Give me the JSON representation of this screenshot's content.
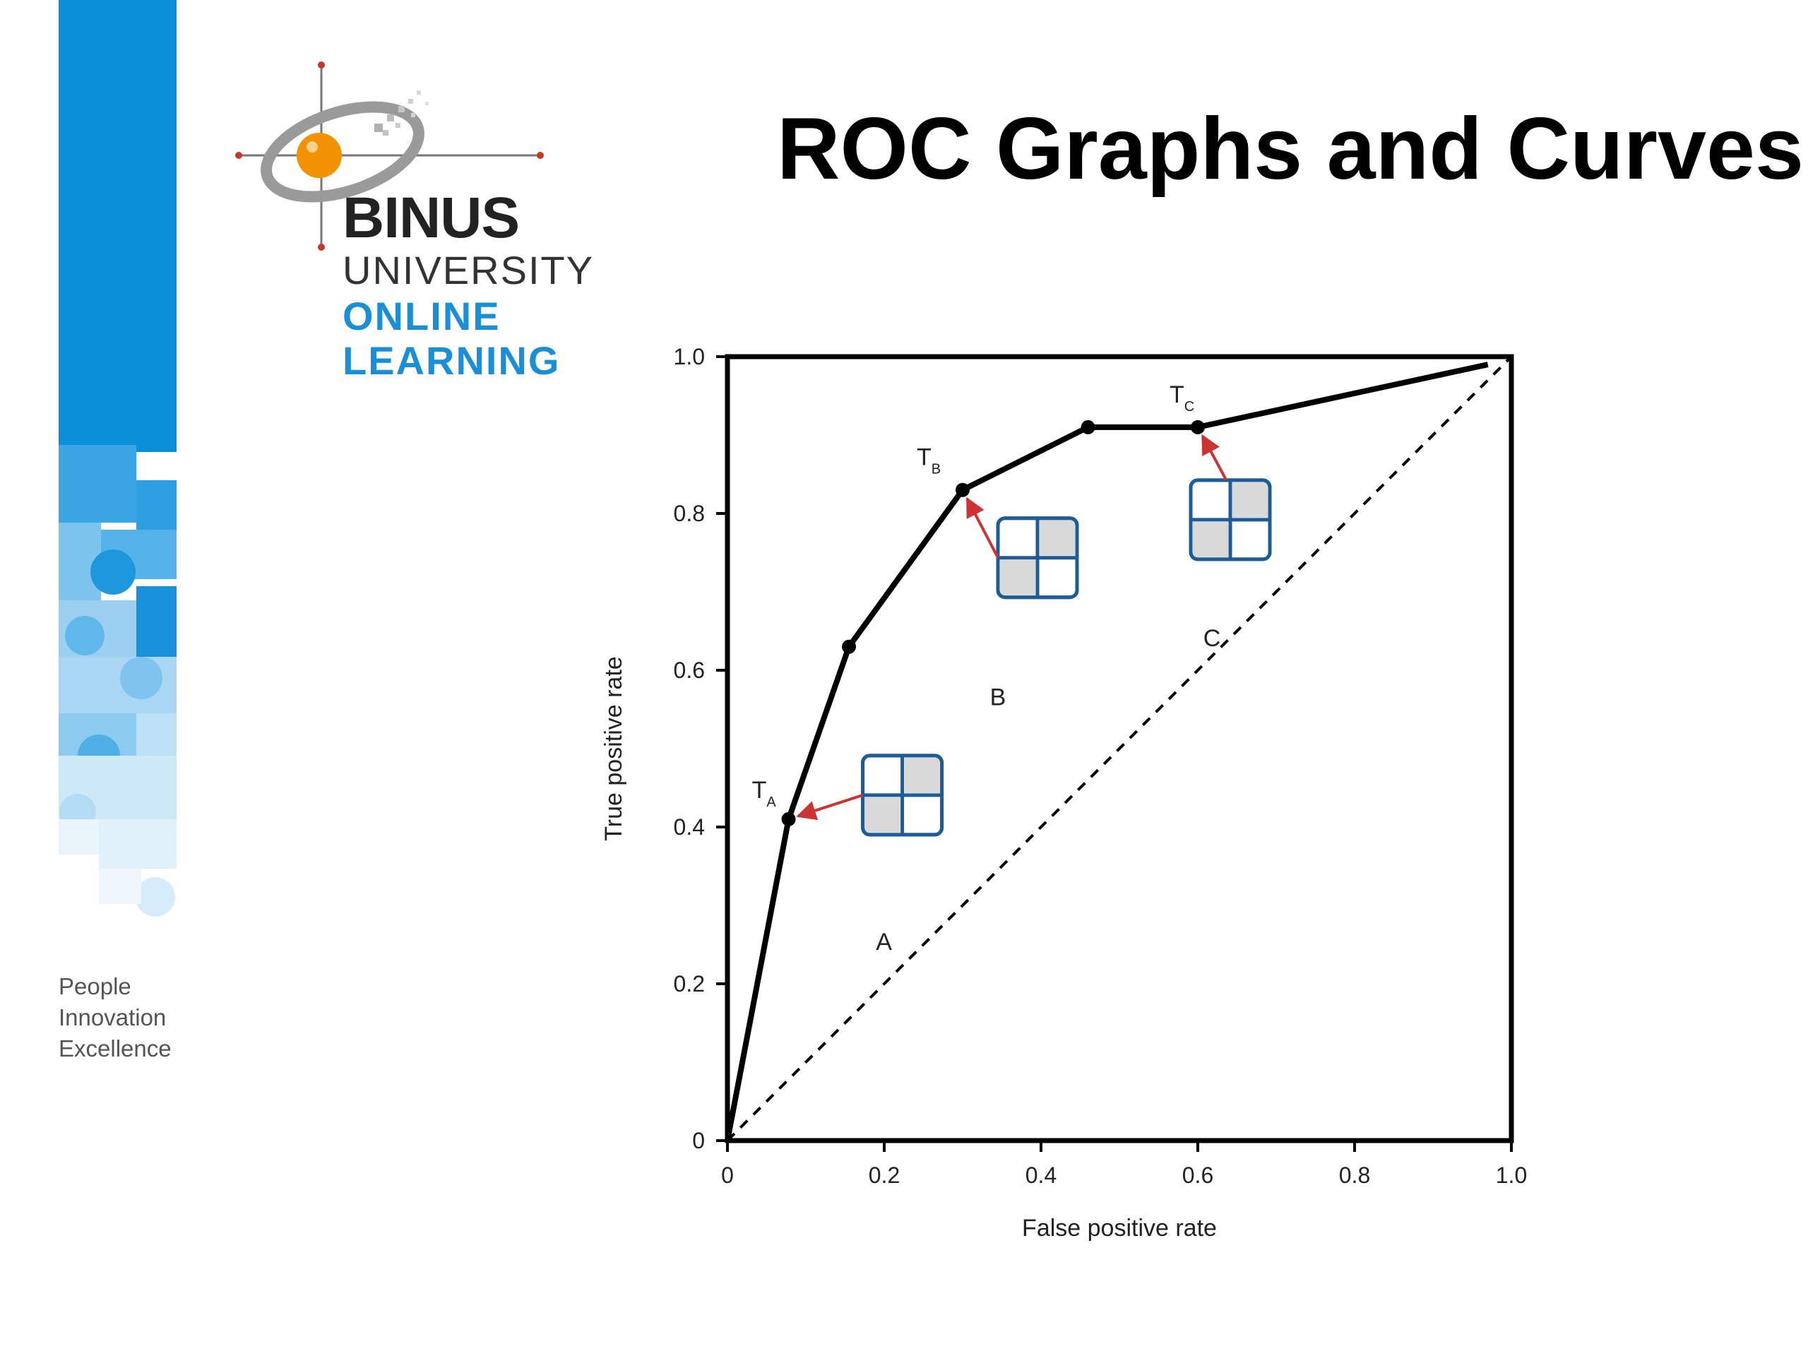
{
  "slide": {
    "title": "ROC Graphs and Curves",
    "tagline": [
      "People",
      "Innovation",
      "Excellence"
    ],
    "logo": {
      "line1": "BINUS",
      "line2": "UNIVERSITY",
      "line3": "ONLINE",
      "line4": "LEARNING"
    },
    "colors": {
      "band_blue": "#0a8fd8",
      "logo_orange": "#f39200",
      "logo_blue_text": "#1a8fd6",
      "cross_red": "#c0392b",
      "arrow_red": "#cc3333",
      "matrix_blue": "#1d5c96",
      "matrix_gray": "#d9d9d9"
    }
  },
  "chart_data": {
    "type": "line",
    "xlabel": "False positive rate",
    "ylabel": "True positive rate",
    "xlim": [
      0,
      1.0
    ],
    "ylim": [
      0,
      1.0
    ],
    "x_ticks": [
      "0",
      "0.2",
      "0.4",
      "0.6",
      "0.8",
      "1.0"
    ],
    "y_ticks": [
      "0",
      "0.2",
      "0.4",
      "0.6",
      "0.8",
      "1.0"
    ],
    "grid": false,
    "series": [
      {
        "values_xy": [
          [
            0,
            0
          ],
          [
            0.078,
            0.41
          ],
          [
            0.155,
            0.63
          ],
          [
            0.3,
            0.83
          ],
          [
            0.46,
            0.91
          ],
          [
            0.6,
            0.91
          ],
          [
            0.97,
            0.99
          ]
        ],
        "marked_points": [
          [
            0.078,
            0.41
          ],
          [
            0.155,
            0.63
          ],
          [
            0.3,
            0.83
          ],
          [
            0.46,
            0.91
          ],
          [
            0.6,
            0.91
          ]
        ],
        "style": "solid"
      },
      {
        "values_xy": [
          [
            0,
            0
          ],
          [
            1.0,
            1.0
          ]
        ],
        "style": "dashed"
      }
    ],
    "annotations": [
      {
        "label": "T",
        "subscript": "A",
        "point": [
          0.078,
          0.41
        ],
        "matrix": "A",
        "matrix_shaded": [
          "top-right",
          "bottom-left"
        ]
      },
      {
        "label": "T",
        "subscript": "B",
        "point": [
          0.3,
          0.83
        ],
        "matrix": "B",
        "matrix_shaded": [
          "top-right",
          "bottom-left"
        ]
      },
      {
        "label": "T",
        "subscript": "C",
        "point": [
          0.6,
          0.91
        ],
        "matrix": "C",
        "matrix_shaded": [
          "top-right",
          "bottom-left"
        ]
      }
    ]
  }
}
